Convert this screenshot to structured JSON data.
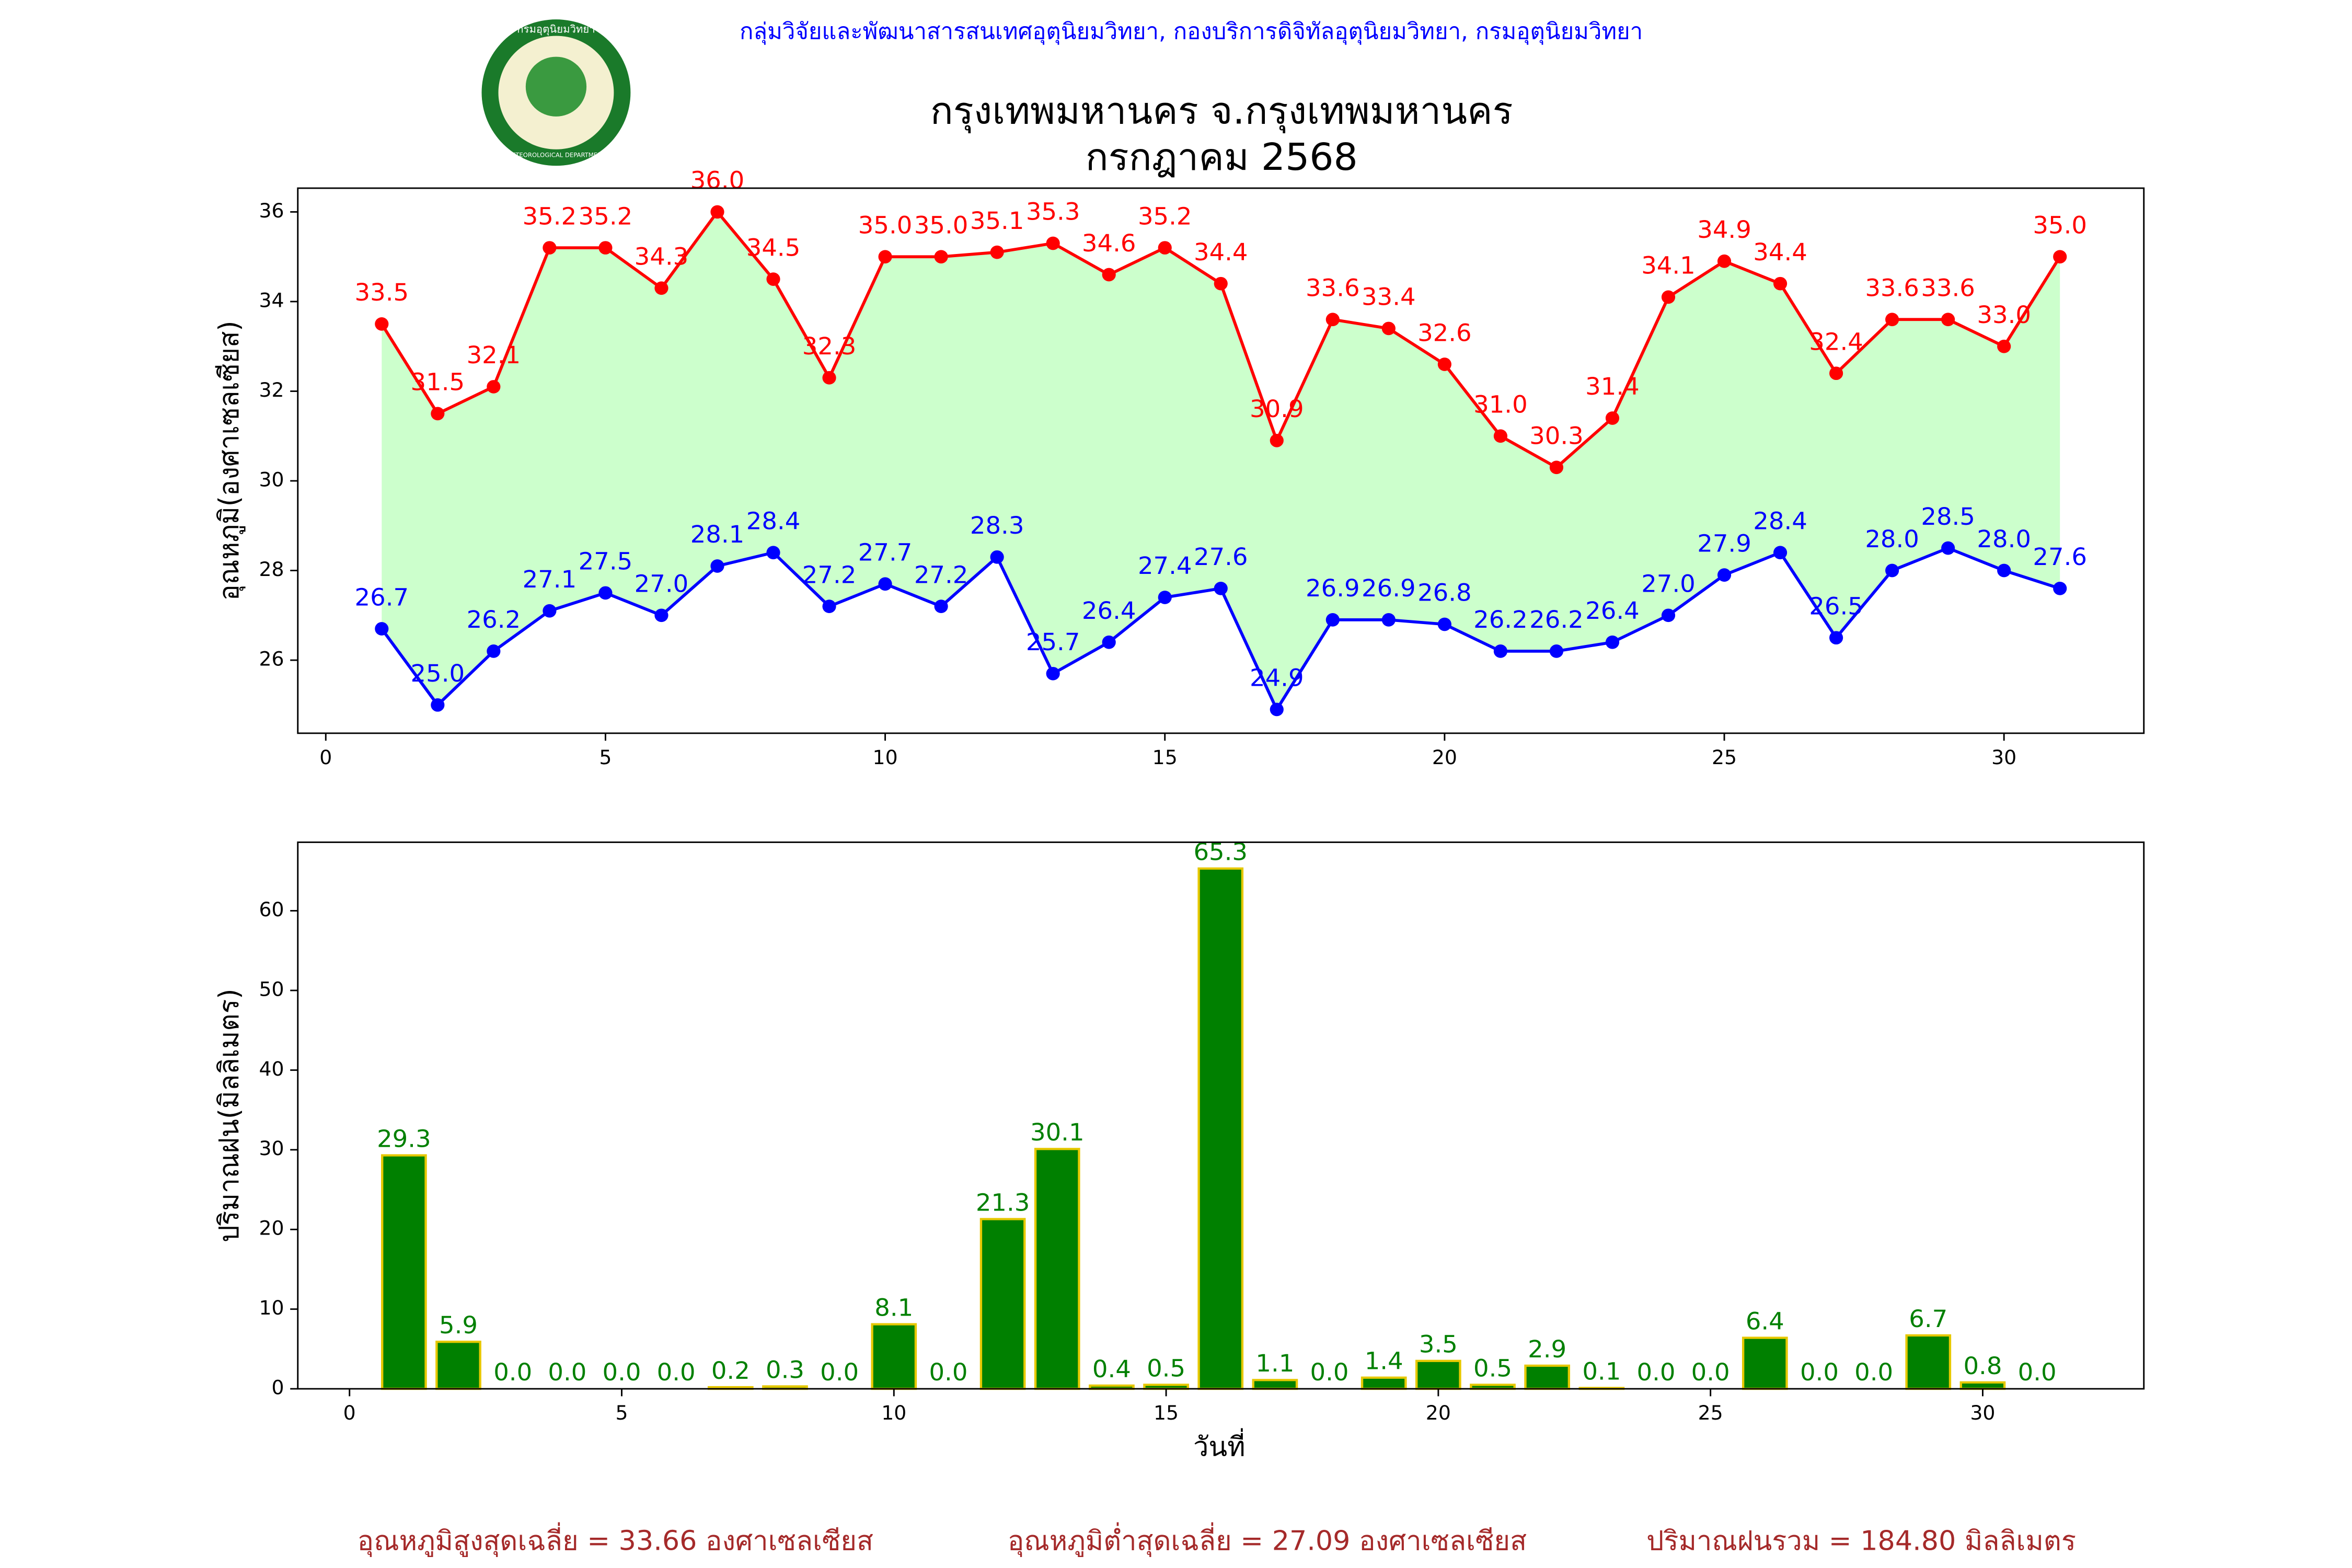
{
  "header": {
    "agency": "กลุ่มวิจัยและพัฒนาสารสนเทศอุตุนิยมวิทยา, กองบริการดิจิทัลอุตุนิยมวิทยา, กรมอุตุนิยมวิทยา",
    "title": "กรุงเทพมหานคร จ.กรุงเทพมหานคร",
    "subtitle": "กรกฎาคม 2568",
    "logo_top": "กรมอุตุนิยมวิทยา",
    "logo_bottom": "METEOROLOGICAL DEPARTMENT"
  },
  "chart_data": [
    {
      "type": "line",
      "y_label": "อุณหภูมิ(องศาเซลเซียส)",
      "x": [
        1,
        2,
        3,
        4,
        5,
        6,
        7,
        8,
        9,
        10,
        11,
        12,
        13,
        14,
        15,
        16,
        17,
        18,
        19,
        20,
        21,
        22,
        23,
        24,
        25,
        26,
        27,
        28,
        29,
        30,
        31
      ],
      "fill_color": "#ccffcc",
      "series": [
        {
          "color": "#ff0000",
          "values": [
            33.5,
            31.5,
            32.1,
            35.2,
            35.2,
            34.3,
            36.0,
            34.5,
            32.3,
            35.0,
            35.0,
            35.1,
            35.3,
            34.6,
            35.2,
            34.4,
            30.9,
            33.6,
            33.4,
            32.6,
            31.0,
            30.3,
            31.4,
            34.1,
            34.9,
            34.4,
            32.4,
            33.6,
            33.6,
            33.0,
            35.0
          ],
          "value_labels": [
            "33.5",
            "31.5",
            "32.1",
            "35.2",
            "35.2",
            "34.3",
            "36.0",
            "34.5",
            "32.3",
            "35.0",
            "35.0",
            "35.1",
            "35.3",
            "34.6",
            "35.2",
            "34.4",
            "30.9",
            "33.6",
            "33.4",
            "32.6",
            "31.0",
            "30.3",
            "31.4",
            "34.1",
            "34.9",
            "34.4",
            "32.4",
            "33.6",
            "33.6",
            "33.0",
            "35.0"
          ]
        },
        {
          "color": "#0000ff",
          "values": [
            26.7,
            25.0,
            26.2,
            27.1,
            27.5,
            27.0,
            28.1,
            28.4,
            27.2,
            27.7,
            27.2,
            28.3,
            25.7,
            26.4,
            27.4,
            27.6,
            24.9,
            26.9,
            26.9,
            26.8,
            26.2,
            26.2,
            26.4,
            27.0,
            27.9,
            28.4,
            26.5,
            28.0,
            28.5,
            28.0,
            27.6
          ],
          "value_labels": [
            "26.7",
            "25.0",
            "26.2",
            "27.1",
            "27.5",
            "27.0",
            "28.1",
            "28.4",
            "27.2",
            "27.7",
            "27.2",
            "28.3",
            "25.7",
            "26.4",
            "27.4",
            "27.6",
            "24.9",
            "26.9",
            "26.9",
            "26.8",
            "26.2",
            "26.2",
            "26.4",
            "27.0",
            "27.9",
            "28.4",
            "26.5",
            "28.0",
            "28.5",
            "28.0",
            "27.6"
          ]
        }
      ],
      "xlim": [
        -0.5,
        32.5
      ],
      "xticks": [
        0,
        5,
        10,
        15,
        20,
        25,
        30
      ],
      "ylim": [
        24.37,
        36.53
      ],
      "yticks": [
        26,
        28,
        30,
        32,
        34,
        36
      ]
    },
    {
      "type": "bar",
      "y_label": "ปริมาณฝน(มิลลิเมตร)",
      "x_label": "วันที่",
      "x": [
        1,
        2,
        3,
        4,
        5,
        6,
        7,
        8,
        9,
        10,
        11,
        12,
        13,
        14,
        15,
        16,
        17,
        18,
        19,
        20,
        21,
        22,
        23,
        24,
        25,
        26,
        27,
        28,
        29,
        30,
        31
      ],
      "color": "#008000",
      "edge_color": "#e6c800",
      "values": [
        29.3,
        5.9,
        0,
        0,
        0,
        0,
        0.2,
        0.3,
        0,
        8.1,
        0,
        21.3,
        30.1,
        0.4,
        0.5,
        65.3,
        1.1,
        0,
        1.4,
        3.5,
        0.5,
        2.9,
        0.1,
        0,
        0,
        6.4,
        0,
        0,
        6.7,
        0.8,
        0
      ],
      "value_labels": [
        "29.3",
        "5.9",
        "0.0",
        "0.0",
        "0.0",
        "0.0",
        "0.2",
        "0.3",
        "0.0",
        "8.1",
        "0.0",
        "21.3",
        "30.1",
        "0.4",
        "0.5",
        "65.3",
        "1.1",
        "0.0",
        "1.4",
        "3.5",
        "0.5",
        "2.9",
        "0.1",
        "0.0",
        "0.0",
        "6.4",
        "0.0",
        "0.0",
        "6.7",
        "0.8",
        "0.0"
      ],
      "xlim": [
        -0.95,
        32.96
      ],
      "xticks": [
        0,
        5,
        10,
        15,
        20,
        25,
        30
      ],
      "ylim": [
        0,
        68.6
      ],
      "yticks": [
        0,
        10,
        20,
        30,
        40,
        50,
        60
      ]
    }
  ],
  "footer": [
    "อุณหภูมิสูงสุดเฉลี่ย = 33.66 องศาเซลเซียส",
    "อุณหภูมิต่ำสุดเฉลี่ย = 27.09 องศาเซลเซียส",
    "ปริมาณฝนรวม = 184.80 มิลลิเมตร"
  ]
}
